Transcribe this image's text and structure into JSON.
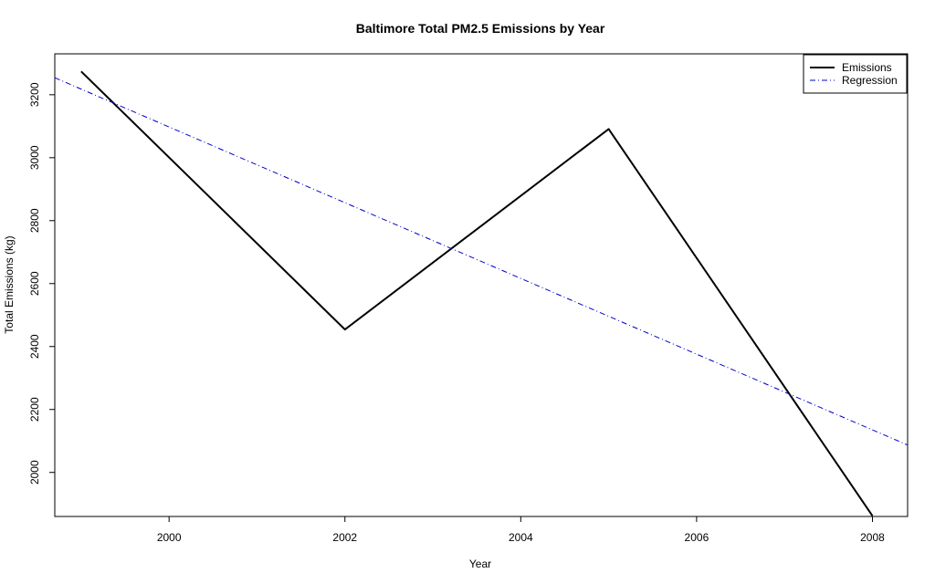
{
  "chart_data": {
    "type": "line",
    "title": "Baltimore Total PM2.5 Emissions by Year",
    "xlabel": "Year",
    "ylabel": "Total Emissions (kg)",
    "xlim": [
      1998.7,
      2008.4
    ],
    "ylim": [
      1860,
      3330
    ],
    "x_ticks": [
      2000,
      2002,
      2004,
      2006,
      2008
    ],
    "y_ticks": [
      2000,
      2200,
      2400,
      2600,
      2800,
      3000,
      3200
    ],
    "grid": false,
    "legend": {
      "position": "top-right",
      "items": [
        "Emissions",
        "Regression"
      ]
    },
    "series": [
      {
        "name": "Emissions",
        "color": "#000000",
        "style": "solid",
        "x": [
          1999,
          2002,
          2005,
          2008
        ],
        "y": [
          3274,
          2454,
          3091,
          1862
        ]
      },
      {
        "name": "Regression",
        "color": "#0000cc",
        "style": "dashdot",
        "x": [
          1998.7,
          2008.4
        ],
        "y": [
          3254,
          2087
        ]
      }
    ]
  }
}
